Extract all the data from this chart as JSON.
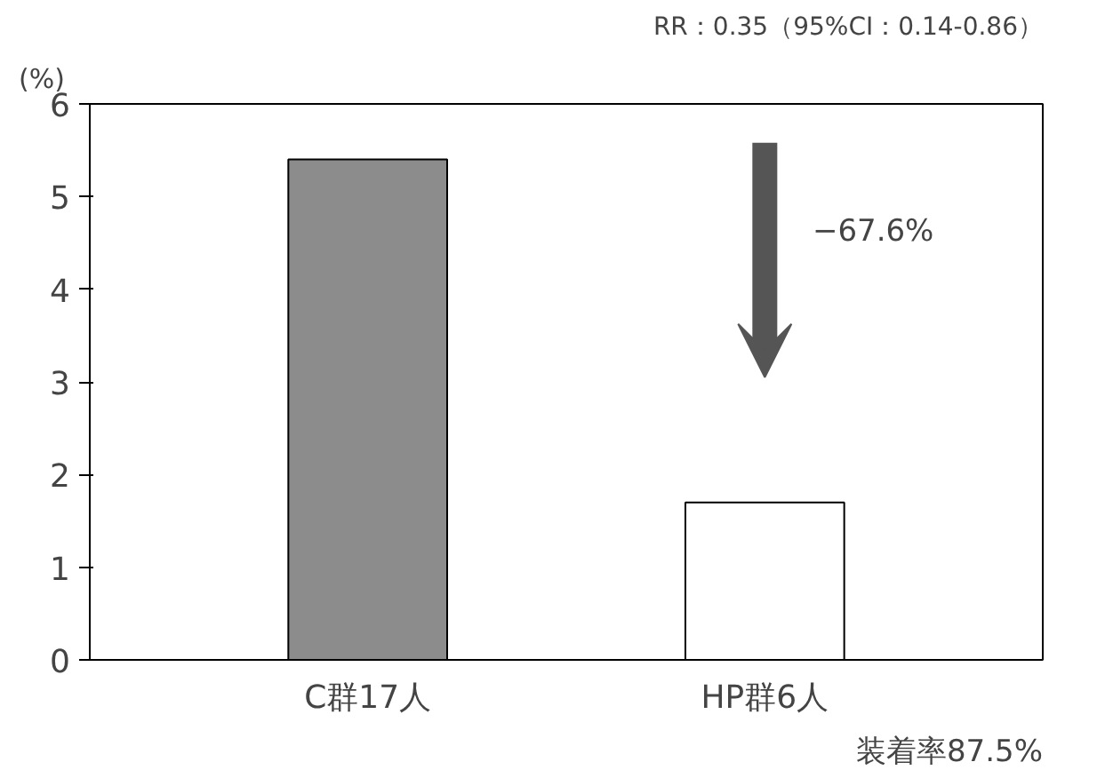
{
  "chart_data": {
    "type": "bar",
    "categories": [
      "C群17人",
      "HP群6人"
    ],
    "values": [
      5.4,
      1.7
    ],
    "colors": [
      "#8c8c8c",
      "#ffffff"
    ],
    "ylabel": "(%)",
    "ylim": [
      0,
      6
    ],
    "yticks": [
      0,
      1,
      2,
      3,
      4,
      5,
      6
    ],
    "grid": false,
    "annotations": [
      "RR：0.35（95%CI：0.14-0.86）",
      "−67.6%",
      "装着率87.5%"
    ]
  }
}
